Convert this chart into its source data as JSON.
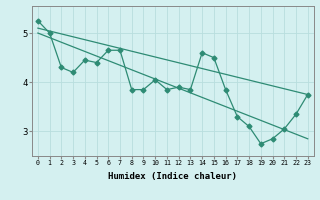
{
  "x": [
    0,
    1,
    2,
    3,
    4,
    5,
    6,
    7,
    8,
    9,
    10,
    11,
    12,
    13,
    14,
    15,
    16,
    17,
    18,
    19,
    20,
    21,
    22,
    23
  ],
  "y_zigzag": [
    5.25,
    5.0,
    4.3,
    4.2,
    4.45,
    4.4,
    4.65,
    4.65,
    3.85,
    3.85,
    4.05,
    3.85,
    3.9,
    3.85,
    4.6,
    4.5,
    3.85,
    3.3,
    3.1,
    2.75,
    2.85,
    3.05,
    3.35,
    3.75
  ],
  "y_line1_start": 5.1,
  "y_line1_end": 3.75,
  "y_line2_start": 5.0,
  "y_line2_end": 2.85,
  "color": "#2e8b74",
  "bg_color": "#d4f0f0",
  "grid_color": "#b8dede",
  "xlabel": "Humidex (Indice chaleur)",
  "yticks": [
    3,
    4,
    5
  ],
  "xlim": [
    -0.5,
    23.5
  ],
  "ylim": [
    2.5,
    5.55
  ],
  "marker": "D",
  "markersize": 2.5,
  "linewidth": 0.9
}
